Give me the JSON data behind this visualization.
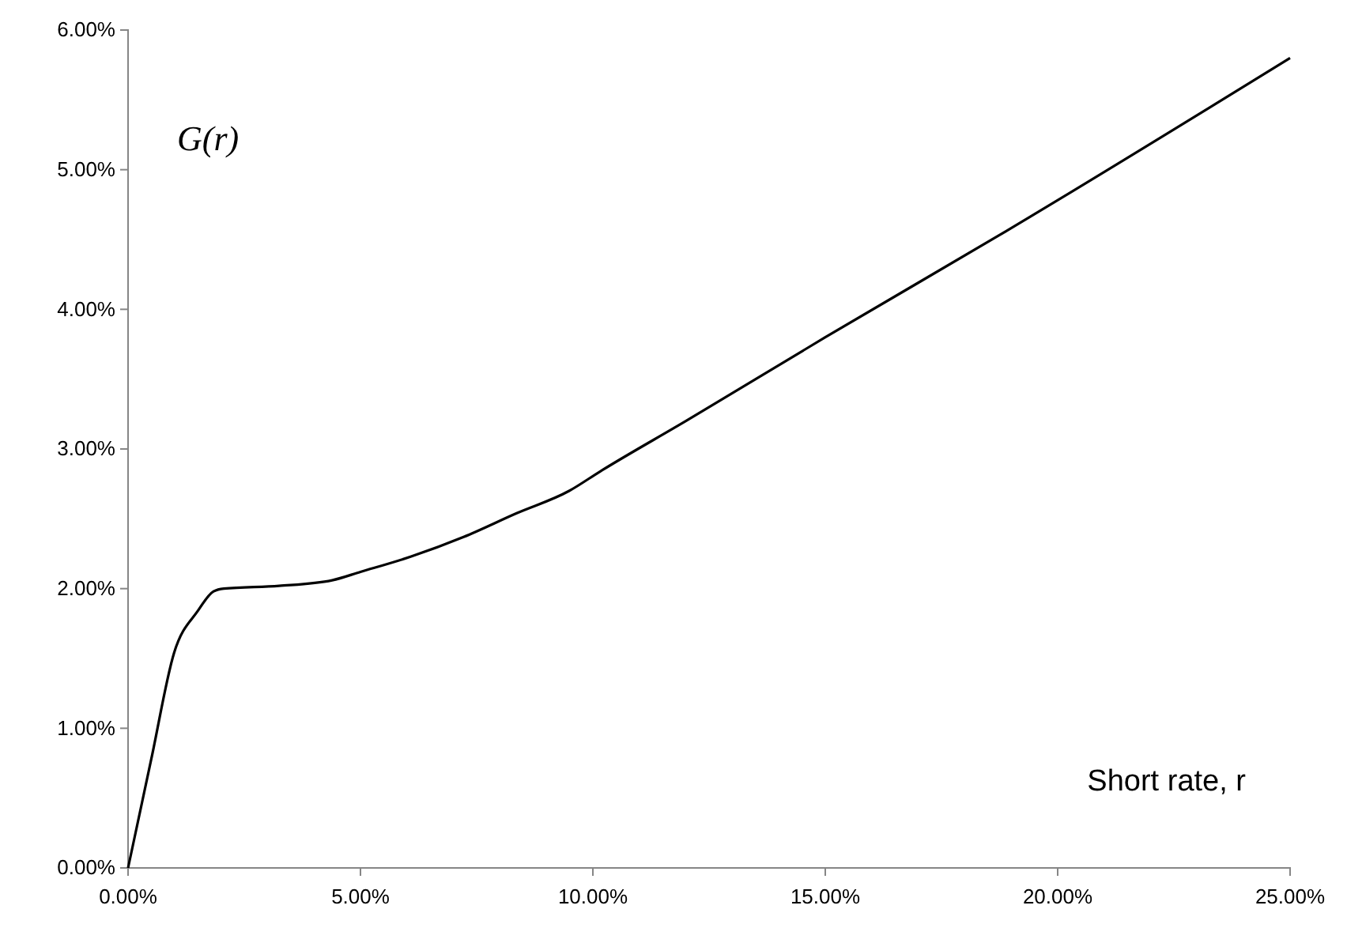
{
  "chart_data": {
    "type": "line",
    "xlabel": "Short rate, r",
    "ylabel": "G(r)",
    "x": [
      0,
      0.5,
      0.99,
      1.5,
      1.84,
      2.06,
      3.25,
      4.39,
      5,
      6.09,
      7.22,
      8.36,
      9.49,
      10.16,
      12,
      15,
      18.74,
      25
    ],
    "series": [
      {
        "color": "#000000",
        "values": [
          0,
          0.78,
          1.54,
          1.84,
          1.98,
          2.0,
          2.02,
          2.06,
          2.12,
          2.23,
          2.37,
          2.54,
          2.7,
          2.84,
          3.2,
          3.8,
          4.53,
          5.8
        ]
      }
    ],
    "xlim": [
      0,
      25
    ],
    "ylim": [
      0,
      6
    ],
    "xticks": [
      {
        "value": 0,
        "label": "0.00%"
      },
      {
        "value": 5,
        "label": "5.00%"
      },
      {
        "value": 10,
        "label": "10.00%"
      },
      {
        "value": 15,
        "label": "15.00%"
      },
      {
        "value": 20,
        "label": "20.00%"
      },
      {
        "value": 25,
        "label": "25.00%"
      }
    ],
    "yticks": [
      {
        "value": 0,
        "label": "0.00%"
      },
      {
        "value": 1,
        "label": "1.00%"
      },
      {
        "value": 2,
        "label": "2.00%"
      },
      {
        "value": 3,
        "label": "3.00%"
      },
      {
        "value": 4,
        "label": "4.00%"
      },
      {
        "value": 5,
        "label": "5.00%"
      },
      {
        "value": 6,
        "label": "6.00%"
      }
    ],
    "grid": false,
    "marker": "none",
    "line_style": "solid"
  }
}
